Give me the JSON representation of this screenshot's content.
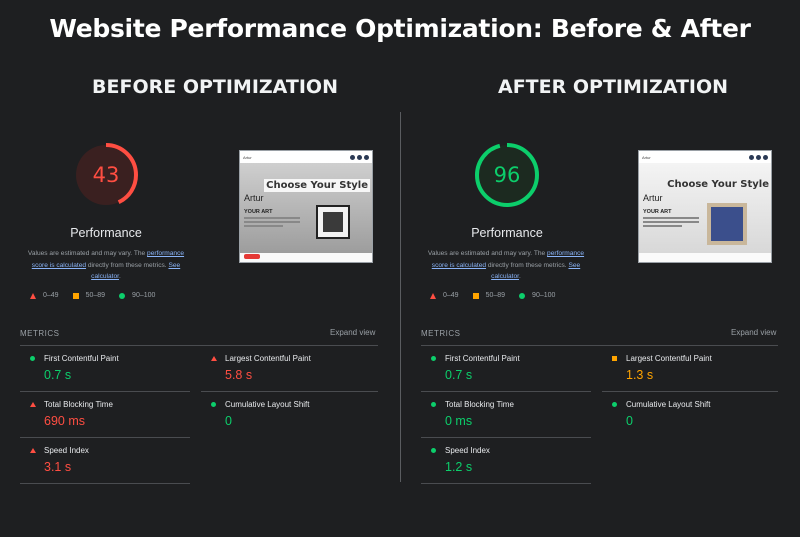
{
  "title": "Website Performance Optimization: Before & After",
  "colors": {
    "bad": "#ff4e42",
    "average": "#ffa400",
    "good": "#0cce6b",
    "background": "#1e1f21"
  },
  "before": {
    "heading": "BEFORE OPTIMIZATION",
    "score": "43",
    "score_fraction": 0.43,
    "score_color": "#ff4e42",
    "score_fill": "#3a2020",
    "performance_label": "Performance",
    "note_text1": "Values are estimated and may vary. The ",
    "note_link1": "performance score is calculated",
    "note_text2": " directly from these metrics. ",
    "note_link2": "See calculator",
    "note_text3": ".",
    "legend": [
      {
        "icon": "triangle-icon",
        "label": "0–49"
      },
      {
        "icon": "square-icon",
        "label": "50–89"
      },
      {
        "icon": "circle-icon",
        "label": "90–100"
      }
    ],
    "thumbnail": {
      "logo": "Artur",
      "heading": "Choose Your Style",
      "name": "Artur",
      "subheading": "YOUR ART"
    },
    "metrics_label": "METRICS",
    "expand_label": "Expand view",
    "metrics": [
      {
        "name": "First Contentful Paint",
        "value": "0.7 s",
        "rating": "good"
      },
      {
        "name": "Largest Contentful Paint",
        "value": "5.8 s",
        "rating": "bad"
      },
      {
        "name": "Total Blocking Time",
        "value": "690 ms",
        "rating": "bad"
      },
      {
        "name": "Cumulative Layout Shift",
        "value": "0",
        "rating": "good"
      },
      {
        "name": "Speed Index",
        "value": "3.1 s",
        "rating": "bad"
      }
    ]
  },
  "after": {
    "heading": "AFTER OPTIMIZATION",
    "score": "96",
    "score_fraction": 0.96,
    "score_color": "#0cce6b",
    "score_fill": "#1c2a20",
    "performance_label": "Performance",
    "note_text1": "Values are estimated and may vary. The ",
    "note_link1": "performance score is calculated",
    "note_text2": " directly from these metrics. ",
    "note_link2": "See calculator",
    "note_text3": ".",
    "legend": [
      {
        "icon": "triangle-icon",
        "label": "0–49"
      },
      {
        "icon": "square-icon",
        "label": "50–89"
      },
      {
        "icon": "circle-icon",
        "label": "90–100"
      }
    ],
    "thumbnail": {
      "logo": "Artur",
      "heading": "Choose Your Style",
      "name": "Artur",
      "subheading": "YOUR ART"
    },
    "metrics_label": "METRICS",
    "expand_label": "Expand view",
    "metrics": [
      {
        "name": "First Contentful Paint",
        "value": "0.7 s",
        "rating": "good"
      },
      {
        "name": "Largest Contentful Paint",
        "value": "1.3 s",
        "rating": "average"
      },
      {
        "name": "Total Blocking Time",
        "value": "0 ms",
        "rating": "good"
      },
      {
        "name": "Cumulative Layout Shift",
        "value": "0",
        "rating": "good"
      },
      {
        "name": "Speed Index",
        "value": "1.2 s",
        "rating": "good"
      }
    ]
  }
}
